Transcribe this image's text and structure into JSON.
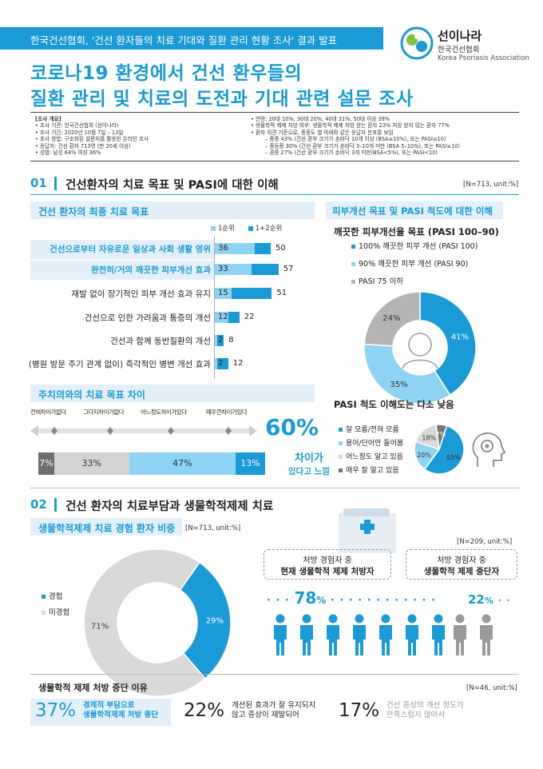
{
  "header": {
    "banner": "한국건선협회, '건선 환자들의 치료 기대와 질환 관리 현황 조사' 결과 발표",
    "logo_name": "선이나라",
    "logo_sub": "한국건선협회",
    "logo_en": "Korea Psoriasis Association"
  },
  "title": {
    "line1": "코로나19 환경에서 건선 환우들의",
    "line2": "질환 관리 및 치료의 도전과 기대 관련 설문 조사"
  },
  "survey": {
    "left": [
      "[조사 개요]",
      "• 조사 기관: 한국건선협회 (선이나라)",
      "• 조사 기간: 2020년 10월 7일 – 13일",
      "• 조사 방법: 구조화된 설문지를 활용한 온라인 조사",
      "• 응답자: 건선 환자 713명 (만 20세 이상)",
      "• 성별: 남성 64% 여성 36%"
    ],
    "right": [
      "• 연령: 20대 10%, 30대 20%, 40대 31%, 50대 이상 39%",
      "• 생물학적 제제 처방 여부: 생물학적 제제 처방 받는 환자 23% 처방 받지 않는 환자 77%",
      "• 환자 의견 기준으로, 중증도 별 아래와 같은 응답자 분포를 보임",
      "– 중증 43% (건선 환부 크기가 손바닥 10개 이상 (BSA≥10%), 또는 PASI≥10)",
      "– 중등증 30% (건선 환부 크기가 손바닥 3–10개 미만 (BSA 5–10%), 또는 PASI≥10)",
      "– 경증 27% (건선 환부 크기가 손바닥 3개 미만(BSA<5%), 또는 PASI<10)"
    ]
  },
  "section1": {
    "num": "01",
    "title": "건선환자의 치료 목표 및 PASI에 대한 이해",
    "note": "[N=713, unit:%]",
    "goals_title": "건선 환자의 최종 치료 목표",
    "legend1": "1순위",
    "legend2": "1+2순위",
    "diff_title": "주치의와의 치료 목표 차이",
    "diff_labels": [
      "전혀차이가없다",
      "그다지차이가없다",
      "어느정도차이가있다",
      "매우큰차이가있다"
    ],
    "diff_big": "60%",
    "diff_caption1": "차이가",
    "diff_caption2": "있다고 느낌",
    "right_title": "피부개선 목표 및 PASI 척도에 대한 이해",
    "pasi_goal_title": "깨끗한 피부개선율 목표 (PASI 100–90)",
    "pasi_legend": [
      "100% 깨끗한 피부 개선 (PASI 100)",
      "90% 깨끗한 피부 개선 (PASI 90)",
      "PASI 75 이하"
    ],
    "understand_title": "PASI 척도 이해도는 다소 낮음",
    "understand_legend": [
      "잘 모름/전혀 모름",
      "용어/단어만 들어봄",
      "어느정도 알고 있음",
      "매우 잘 알고 있음"
    ]
  },
  "section2": {
    "num": "02",
    "title": "건선 환자의 치료부담과 생물학적제제 치료",
    "bio_title": "생물학적제제 치료 경험 환자 비중",
    "bio_note": "[N=713, unit:%]",
    "bio_legend": [
      "경험",
      "미경험"
    ],
    "right_note": "[N=209, unit:%]",
    "current_label1": "처방 경험자 중",
    "current_label2": "현재 생물학적 제제 처방자",
    "stopped_label1": "처방 경험자 중",
    "stopped_label2": "생물학적 제제 중단자",
    "current_pct": "78",
    "stopped_pct": "22",
    "pct_sign": "%",
    "reason_title": "생물학적 제제 처방 중단 이유",
    "reason_note": "[N=46, unit:%]",
    "reasons": [
      {
        "pct": "37%",
        "line1": "경제적 부담으로",
        "line2": "생물학적제제 처방 중단"
      },
      {
        "pct": "22%",
        "line1": "개선된 효과가 잘 유지되지",
        "line2": "않고 증상이 재발되어"
      },
      {
        "pct": "17%",
        "line1": "건선 증상의 개선 정도가",
        "line2": "만족스럽지 않아서"
      }
    ]
  },
  "colors": {
    "accent": "#1a9ad6",
    "light": "#8fd3f4",
    "gray": "#b4b4b4",
    "dark": "#6e6e6e"
  },
  "chart_data": [
    {
      "type": "bar",
      "title": "건선 환자의 최종 치료 목표",
      "categories": [
        "건선으로부터 자유로운 일상과 사회 생활 영위",
        "완전히/거의 깨끗한 피부개선 효과",
        "재발 없이 장기적인 피부 개선 효과 유지",
        "건선으로 인한 가려움과 통증의 개선",
        "건선과 함께 동반질환의 개선",
        "(병원 방문 주기 관계 없이) 즉각적인 병변 개선 효과"
      ],
      "series": [
        {
          "name": "1순위",
          "values": [
            36,
            33,
            15,
            12,
            2,
            2
          ]
        },
        {
          "name": "1+2순위",
          "values": [
            50,
            57,
            51,
            22,
            8,
            12
          ]
        }
      ]
    },
    {
      "type": "bar",
      "title": "주치의와의 치료 목표 차이",
      "categories": [
        "전혀차이가없다",
        "그다지차이가없다",
        "어느정도차이가있다",
        "매우큰차이가있다"
      ],
      "values": [
        7,
        33,
        47,
        13
      ]
    },
    {
      "type": "pie",
      "title": "깨끗한 피부개선율 목표 (PASI 100–90)",
      "categories": [
        "100% 깨끗한 피부 개선 (PASI 100)",
        "90% 깨끗한 피부 개선 (PASI 90)",
        "PASI 75 이하"
      ],
      "values": [
        41,
        35,
        24
      ]
    },
    {
      "type": "pie",
      "title": "PASI 척도 이해도는 다소 낮음",
      "categories": [
        "잘 모름/전혀 모름",
        "용어/단어만 들어봄",
        "어느정도 알고 있음",
        "매우 잘 알고 있음"
      ],
      "values": [
        55,
        20,
        18,
        7
      ]
    },
    {
      "type": "pie",
      "title": "생물학적제제 치료 경험 환자 비중",
      "categories": [
        "경험",
        "미경험"
      ],
      "values": [
        29,
        71
      ]
    }
  ]
}
